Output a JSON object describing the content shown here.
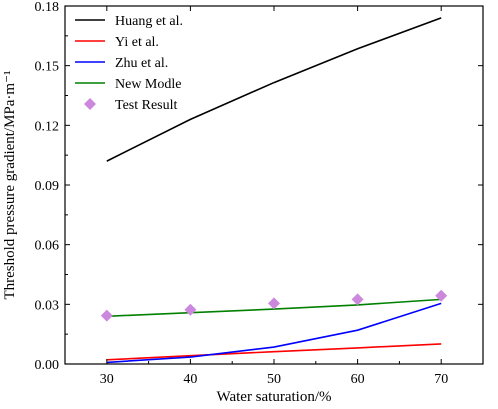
{
  "chart_data": {
    "type": "line",
    "xlabel": "Water saturation/%",
    "ylabel": "Threshold pressure gradient/MPa·m⁻¹",
    "xlim": [
      25,
      75
    ],
    "ylim": [
      0,
      0.18
    ],
    "xticks": [
      "30",
      "40",
      "50",
      "60",
      "70"
    ],
    "xtick_values": [
      30,
      40,
      50,
      60,
      70
    ],
    "yticks": [
      "0.00",
      "0.03",
      "0.06",
      "0.09",
      "0.12",
      "0.15",
      "0.18"
    ],
    "ytick_values": [
      0,
      0.03,
      0.06,
      0.09,
      0.12,
      0.15,
      0.18
    ],
    "legend_position": "top-left",
    "grid": false,
    "series": [
      {
        "name": "Huang et al.",
        "kind": "line",
        "color": "#000000",
        "x": [
          30,
          40,
          50,
          60,
          70
        ],
        "y": [
          0.102,
          0.123,
          0.1415,
          0.1585,
          0.174
        ]
      },
      {
        "name": "Yi et al.",
        "kind": "line",
        "color": "#ff0000",
        "x": [
          30,
          40,
          50,
          60,
          70
        ],
        "y": [
          0.0021,
          0.0042,
          0.0062,
          0.0081,
          0.0101
        ]
      },
      {
        "name": "Zhu et al.",
        "kind": "line",
        "color": "#0000ff",
        "x": [
          30,
          40,
          50,
          60,
          70
        ],
        "y": [
          0.0008,
          0.0035,
          0.0085,
          0.017,
          0.0305
        ]
      },
      {
        "name": "New Modle",
        "kind": "line",
        "color": "#008000",
        "x": [
          30,
          40,
          50,
          60,
          70
        ],
        "y": [
          0.024,
          0.0258,
          0.0276,
          0.0297,
          0.0325
        ]
      },
      {
        "name": "Test Result",
        "kind": "scatter",
        "color": "#cc88dd",
        "x": [
          30,
          40,
          50,
          60,
          70
        ],
        "y": [
          0.0243,
          0.0273,
          0.0305,
          0.0325,
          0.0343
        ]
      }
    ]
  }
}
